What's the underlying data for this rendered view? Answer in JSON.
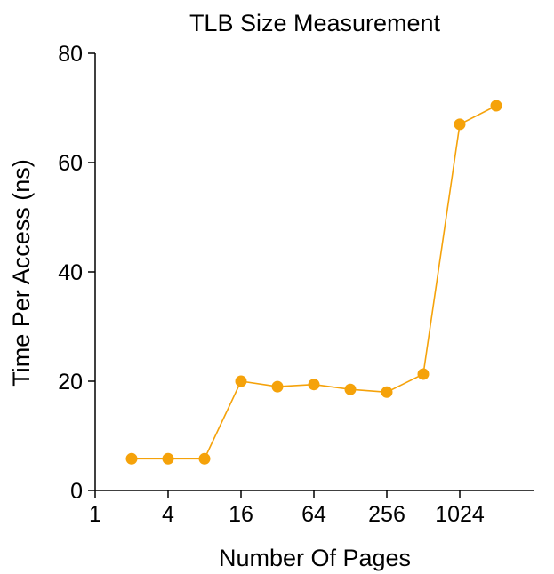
{
  "chart_data": {
    "type": "line",
    "title": "TLB Size Measurement",
    "xlabel": "Number Of Pages",
    "ylabel": "Time Per Access (ns)",
    "xscale": "log2",
    "xlim": [
      1,
      4096
    ],
    "ylim": [
      0,
      80
    ],
    "xticks": [
      1,
      4,
      16,
      64,
      256,
      1024
    ],
    "xtick_labels": [
      "1",
      "4",
      "16",
      "64",
      "256",
      "1024"
    ],
    "yticks": [
      0,
      20,
      40,
      60,
      80
    ],
    "ytick_labels": [
      "0",
      "20",
      "40",
      "60",
      "80"
    ],
    "grid": false,
    "legend": "none",
    "series": [
      {
        "color": "#f5a20a",
        "marker": "circle",
        "x": [
          2,
          4,
          8,
          16,
          32,
          64,
          128,
          256,
          512,
          1024,
          2048
        ],
        "y": [
          5.8,
          5.8,
          5.8,
          20.0,
          19.0,
          19.4,
          18.5,
          18.0,
          21.3,
          67.0,
          70.4
        ]
      }
    ]
  }
}
